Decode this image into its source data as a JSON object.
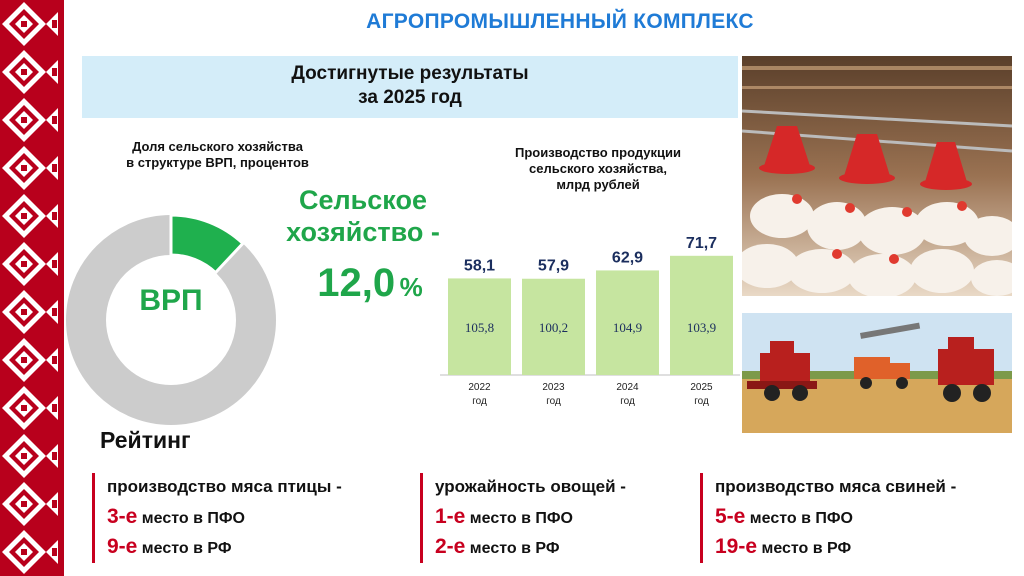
{
  "title": "АГРОПРОМЫШЛЕННЫЙ КОМПЛЕКС",
  "results": {
    "line1": "Достигнутые результаты",
    "line2": "за 2025 год"
  },
  "vrp": {
    "caption_line1": "Доля сельского хозяйства",
    "caption_line2": "в структуре ВРП, процентов",
    "center_label": "ВРП",
    "share_title_line1": "Сельское",
    "share_title_line2": "хозяйство -",
    "share_value": "12,0",
    "share_unit": "%",
    "colors": {
      "share": "#1fb04e",
      "rest": "#cccccc"
    }
  },
  "production": {
    "caption_line1": "Производство продукции",
    "caption_line2": "сельского хозяйства,",
    "caption_line3": "млрд рублей"
  },
  "chart_data": {
    "type": "bar",
    "categories": [
      "2022 год",
      "2023 год",
      "2024 год",
      "2025 год"
    ],
    "category_year": [
      "2022",
      "2023",
      "2024",
      "2025"
    ],
    "category_suffix": "год",
    "series": [
      {
        "values": [
          58.1,
          57.9,
          62.9,
          71.7
        ],
        "value_labels": [
          "58,1",
          "57,9",
          "62,9",
          "71,7"
        ]
      },
      {
        "values": [
          105.8,
          100.2,
          104.9,
          103.9
        ],
        "value_labels": [
          "105,8",
          "100,2",
          "104,9",
          "103,9"
        ]
      }
    ],
    "ylim": [
      0,
      80
    ],
    "grid": false,
    "bar_color": "#c6e5a0"
  },
  "rating": {
    "title": "Рейтинг",
    "columns": [
      {
        "heading": "производство мяса птицы -",
        "lines": [
          {
            "rank": "3-е",
            "text": " место в ПФО"
          },
          {
            "rank": "9-е",
            "text": " место в РФ"
          }
        ]
      },
      {
        "heading": "урожайность овощей -",
        "lines": [
          {
            "rank": "1-е",
            "text": " место в ПФО"
          },
          {
            "rank": "2-е",
            "text": " место в РФ"
          }
        ]
      },
      {
        "heading": "производство мяса свиней -",
        "lines": [
          {
            "rank": "5-е",
            "text": " место в ПФО"
          },
          {
            "rank": "19-е",
            "text": " место в РФ"
          }
        ]
      }
    ]
  },
  "colors": {
    "title_blue": "#1f7bd6",
    "ornament_red": "#b8001c",
    "accent_green": "#1fa64a",
    "rank_red": "#c8001f"
  }
}
